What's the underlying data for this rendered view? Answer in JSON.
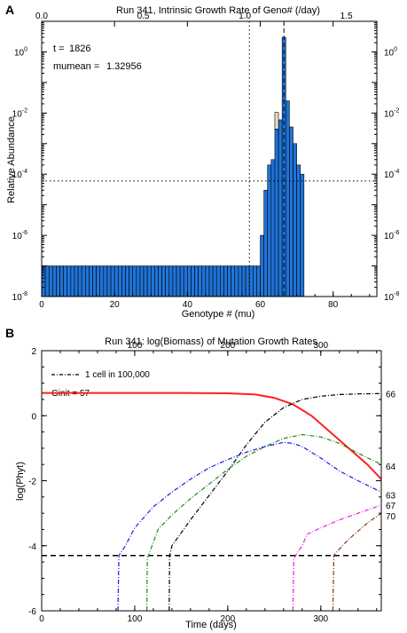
{
  "panel_a_letter": "A",
  "panel_b_letter": "B",
  "chart_data": [
    {
      "type": "bar",
      "title": "Run 341, Intrinsic Growth Rate of Geno# (/day)",
      "xlabel": "Genotype # (mu)",
      "ylabel": "Relative Abundance",
      "xlim": [
        0,
        92
      ],
      "ylim_log10": [
        -8,
        1
      ],
      "y_scale": "log",
      "x_ticks": [
        "0",
        "20",
        "40",
        "60",
        "80"
      ],
      "top_ticks": [
        "0.0",
        "0.5",
        "1.0",
        "1.5"
      ],
      "y_ticks": [
        "10-8",
        "10-6",
        "10-4",
        "10-2",
        "100"
      ],
      "annotations": [
        {
          "label": "t =",
          "value": "1826"
        },
        {
          "label": "mumean =",
          "value": "1.32956"
        }
      ],
      "threshold_relative_abundance": 6e-05,
      "vline_genotype_dotted": 57,
      "vline_genotype_dashed": 66,
      "background_value": 1e-07,
      "genotypes": [
        58,
        59,
        60,
        61,
        62,
        63,
        64,
        65,
        66,
        67,
        68,
        69,
        70,
        71
      ],
      "values": [
        1e-07,
        1e-07,
        1e-06,
        3e-05,
        0.0002,
        0.0003,
        0.003,
        0.006,
        3.0,
        0.025,
        0.0035,
        0.001,
        0.0002,
        0.0001
      ],
      "overlay_tan_genotype": 64,
      "overlay_tan_value": 0.006,
      "bar_color": "#1f74d8",
      "overlay_color": "#e8dcc0"
    },
    {
      "type": "line",
      "title": "Run 341: log(Biomass) of Mutation Growth Rates",
      "xlabel": "Time (days)",
      "ylabel": "log(Phyt)",
      "xlim": [
        0,
        365
      ],
      "ylim": [
        -6,
        2
      ],
      "x_ticks": [
        "0",
        "100",
        "200",
        "300"
      ],
      "top_ticks": [
        "100",
        "200",
        "300"
      ],
      "y_ticks": [
        "-6",
        "-4",
        "-2",
        "0",
        "2"
      ],
      "legend": "1 cell in 100,000",
      "ginit_label": "Ginit = 57",
      "threshold": -4.3,
      "series": [
        {
          "name": "",
          "color": "#ff2020",
          "dash": "solid",
          "x": [
            0,
            50,
            100,
            150,
            200,
            230,
            250,
            270,
            290,
            310,
            330,
            350,
            365
          ],
          "y": [
            0.7,
            0.7,
            0.7,
            0.7,
            0.69,
            0.65,
            0.55,
            0.35,
            0.0,
            -0.5,
            -1.0,
            -1.5,
            -1.95
          ]
        },
        {
          "name": "66",
          "color": "#000000",
          "dash": "dashdot",
          "x": [
            137,
            137.5,
            140,
            160,
            180,
            200,
            220,
            240,
            260,
            280,
            300,
            320,
            340,
            365
          ],
          "y": [
            -6,
            -4.3,
            -4.0,
            -3.2,
            -2.45,
            -1.7,
            -0.9,
            -0.2,
            0.25,
            0.5,
            0.6,
            0.65,
            0.67,
            0.68
          ]
        },
        {
          "name": "64",
          "color": "#1e8a1e",
          "dash": "dashdot",
          "x": [
            113,
            113.5,
            125,
            140,
            160,
            180,
            200,
            220,
            240,
            260,
            280,
            300,
            320,
            340,
            365
          ],
          "y": [
            -6,
            -4.4,
            -3.5,
            -3.05,
            -2.55,
            -2.1,
            -1.65,
            -1.25,
            -0.95,
            -0.7,
            -0.58,
            -0.65,
            -0.85,
            -1.15,
            -1.5
          ]
        },
        {
          "name": "63",
          "color": "#1a1ae0",
          "dash": "dashdot",
          "x": [
            82,
            83,
            90,
            100,
            120,
            140,
            160,
            180,
            200,
            220,
            240,
            260,
            270,
            280,
            300,
            320,
            340,
            365
          ],
          "y": [
            -6,
            -4.3,
            -4.0,
            -3.45,
            -2.8,
            -2.35,
            -1.95,
            -1.6,
            -1.35,
            -1.12,
            -0.95,
            -0.82,
            -0.85,
            -0.95,
            -1.3,
            -1.7,
            -2.0,
            -2.35
          ]
        },
        {
          "name": "67",
          "color": "#e020e0",
          "dash": "dashdot",
          "x": [
            270,
            271,
            275,
            280,
            285,
            300,
            320,
            340,
            365
          ],
          "y": [
            -6,
            -4.4,
            -4.2,
            -4.0,
            -3.65,
            -3.45,
            -3.2,
            -3.0,
            -2.75
          ]
        },
        {
          "name": "70",
          "color": "#8b3a12",
          "dash": "dashdot",
          "x": [
            313,
            314,
            320,
            330,
            340,
            350,
            365
          ],
          "y": [
            -6,
            -4.3,
            -4.1,
            -3.8,
            -3.55,
            -3.3,
            -3.0
          ]
        }
      ]
    }
  ]
}
